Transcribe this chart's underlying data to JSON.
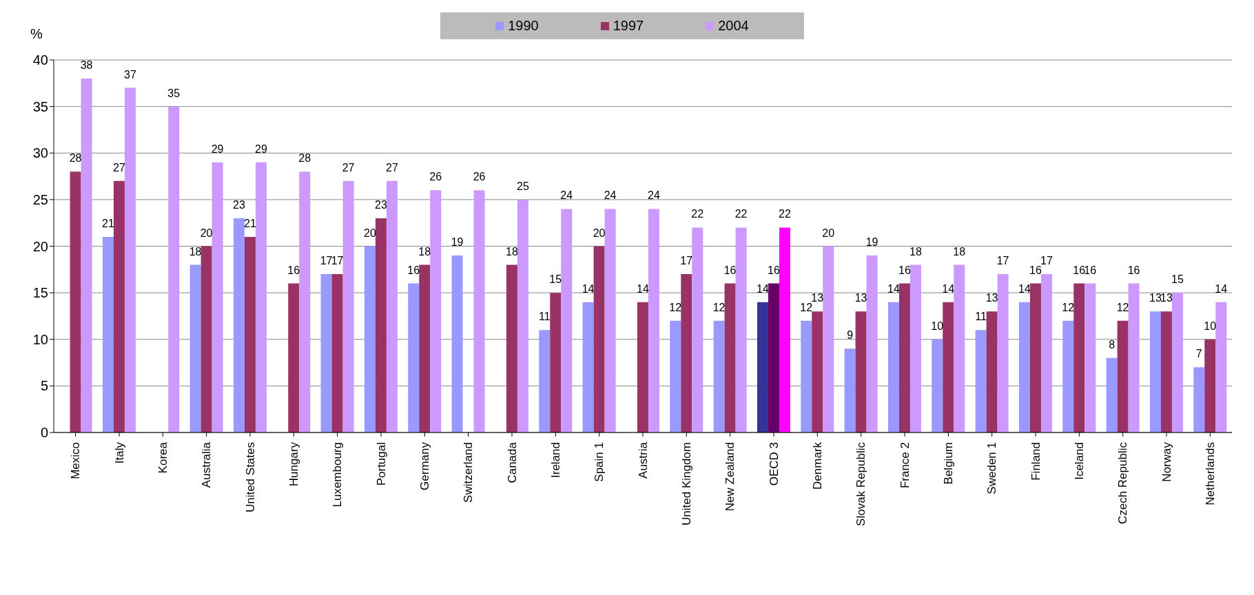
{
  "chart_data": {
    "type": "bar",
    "ylabel": "%",
    "categories": [
      "Mexico",
      "Italy",
      "Korea",
      "Australia",
      "United States",
      "Hungary",
      "Luxembourg",
      "Portugal",
      "Germany",
      "Switzerland",
      "Canada",
      "Ireland",
      "Spain 1",
      "Austria",
      "United Kingdom",
      "New Zealand",
      "OECD 3",
      "Denmark",
      "Slovak Republic",
      "France 2",
      "Belgium",
      "Sweden 1",
      "Finland",
      "Iceland",
      "Czech Republic",
      "Norway",
      "Netherlands"
    ],
    "series": [
      {
        "name": "1990",
        "color": "#9999ff",
        "colors": [
          "#9999ff",
          "#9999ff",
          "#9999ff",
          "#9999ff",
          "#9999ff",
          "#9999ff",
          "#9999ff",
          "#9999ff",
          "#9999ff",
          "#9999ff",
          "#9999ff",
          "#9999ff",
          "#9999ff",
          "#9999ff",
          "#9999ff",
          "#9999ff",
          "#333399",
          "#9999ff",
          "#9999ff",
          "#9999ff",
          "#9999ff",
          "#9999ff",
          "#9999ff",
          "#9999ff",
          "#9999ff",
          "#9999ff",
          "#9999ff"
        ],
        "values": [
          null,
          21,
          null,
          18,
          23,
          null,
          17,
          20,
          16,
          19,
          null,
          11,
          14,
          null,
          12,
          12,
          14,
          12,
          9,
          14,
          10,
          11,
          14,
          12,
          8,
          13,
          7
        ]
      },
      {
        "name": "1997",
        "color": "#993366",
        "colors": [
          "#993366",
          "#993366",
          "#993366",
          "#993366",
          "#993366",
          "#993366",
          "#993366",
          "#993366",
          "#993366",
          "#993366",
          "#993366",
          "#993366",
          "#993366",
          "#993366",
          "#993366",
          "#993366",
          "#660066",
          "#993366",
          "#993366",
          "#993366",
          "#993366",
          "#993366",
          "#993366",
          "#993366",
          "#993366",
          "#993366",
          "#993366"
        ],
        "values": [
          28,
          27,
          null,
          20,
          21,
          16,
          17,
          23,
          18,
          null,
          18,
          15,
          20,
          14,
          17,
          16,
          16,
          13,
          13,
          16,
          14,
          13,
          16,
          16,
          12,
          13,
          10
        ]
      },
      {
        "name": "2004",
        "color": "#cc99ff",
        "colors": [
          "#cc99ff",
          "#cc99ff",
          "#cc99ff",
          "#cc99ff",
          "#cc99ff",
          "#cc99ff",
          "#cc99ff",
          "#cc99ff",
          "#cc99ff",
          "#cc99ff",
          "#cc99ff",
          "#cc99ff",
          "#cc99ff",
          "#cc99ff",
          "#cc99ff",
          "#cc99ff",
          "#ff00ff",
          "#cc99ff",
          "#cc99ff",
          "#cc99ff",
          "#cc99ff",
          "#cc99ff",
          "#cc99ff",
          "#cc99ff",
          "#cc99ff",
          "#cc99ff",
          "#cc99ff"
        ],
        "values": [
          38,
          37,
          35,
          29,
          29,
          28,
          27,
          27,
          26,
          26,
          25,
          24,
          24,
          24,
          22,
          22,
          22,
          20,
          19,
          18,
          18,
          17,
          17,
          16,
          16,
          15,
          14
        ]
      }
    ],
    "ylim": [
      0,
      40
    ],
    "yticks": [
      0,
      5,
      10,
      15,
      20,
      25,
      30,
      35,
      40
    ],
    "grid": "y",
    "legend": "top",
    "data_labels": true
  }
}
